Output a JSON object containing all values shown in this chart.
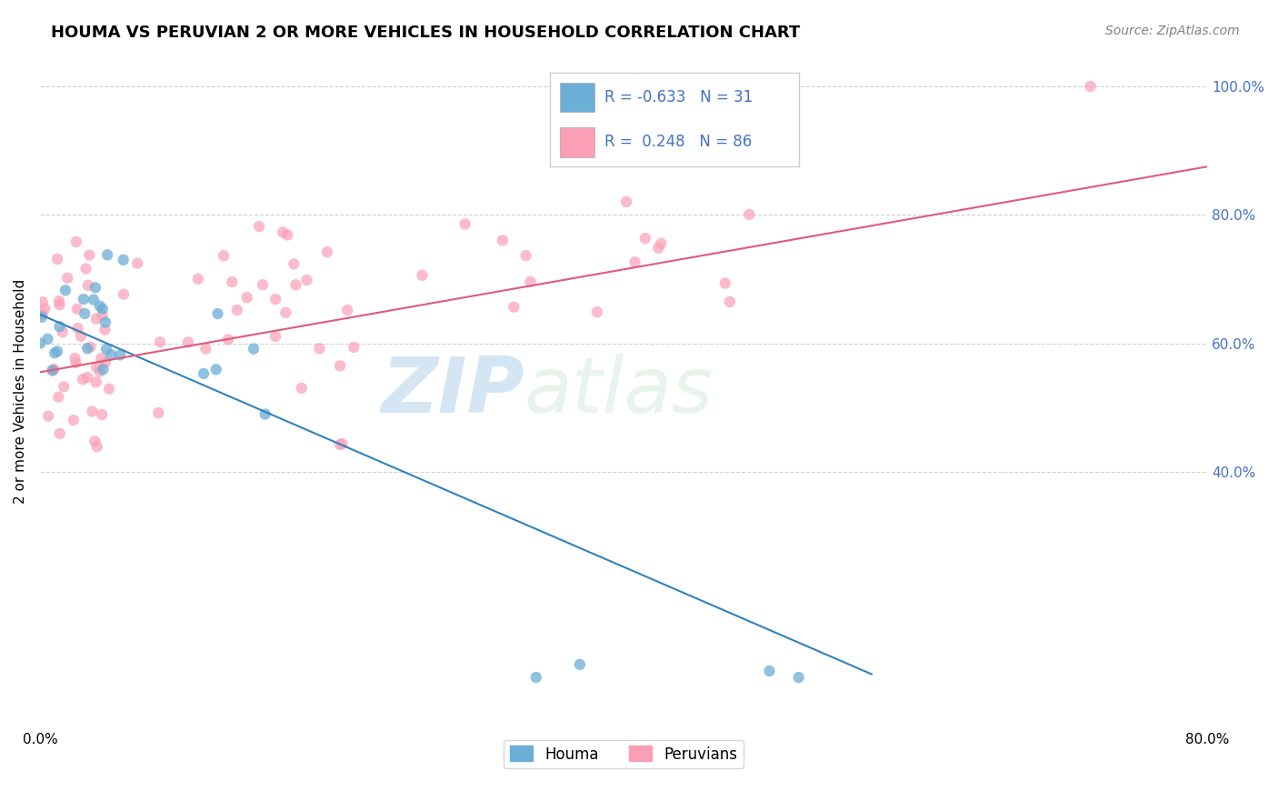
{
  "title": "HOUMA VS PERUVIAN 2 OR MORE VEHICLES IN HOUSEHOLD CORRELATION CHART",
  "source": "Source: ZipAtlas.com",
  "ylabel": "2 or more Vehicles in Household",
  "watermark_zip": "ZIP",
  "watermark_atlas": "atlas",
  "legend_houma_R": "-0.633",
  "legend_houma_N": "31",
  "legend_peruvian_R": "0.248",
  "legend_peruvian_N": "86",
  "houma_color": "#6baed6",
  "peruvian_color": "#fa9fb5",
  "houma_line_color": "#3182bd",
  "peruvian_line_color": "#e05a7a",
  "xlim": [
    0.0,
    0.8
  ],
  "ylim": [
    0.0,
    1.05
  ],
  "xtick_labels": [
    "0.0%",
    "",
    "",
    "",
    "80.0%"
  ],
  "right_ytick_vals": [
    1.0,
    0.8,
    0.6,
    0.4
  ],
  "right_ytick_labels": [
    "100.0%",
    "80.0%",
    "60.0%",
    "40.0%"
  ],
  "grid_color": "#cccccc",
  "background_color": "#ffffff",
  "title_fontsize": 13,
  "axis_label_color": "#4472c4",
  "legend_text_color": "#4472c4",
  "houma_line_x": [
    0.0,
    0.57
  ],
  "houma_line_y": [
    0.645,
    0.085
  ],
  "peruvian_line_x": [
    0.0,
    0.8
  ],
  "peruvian_line_y": [
    0.555,
    0.875
  ]
}
